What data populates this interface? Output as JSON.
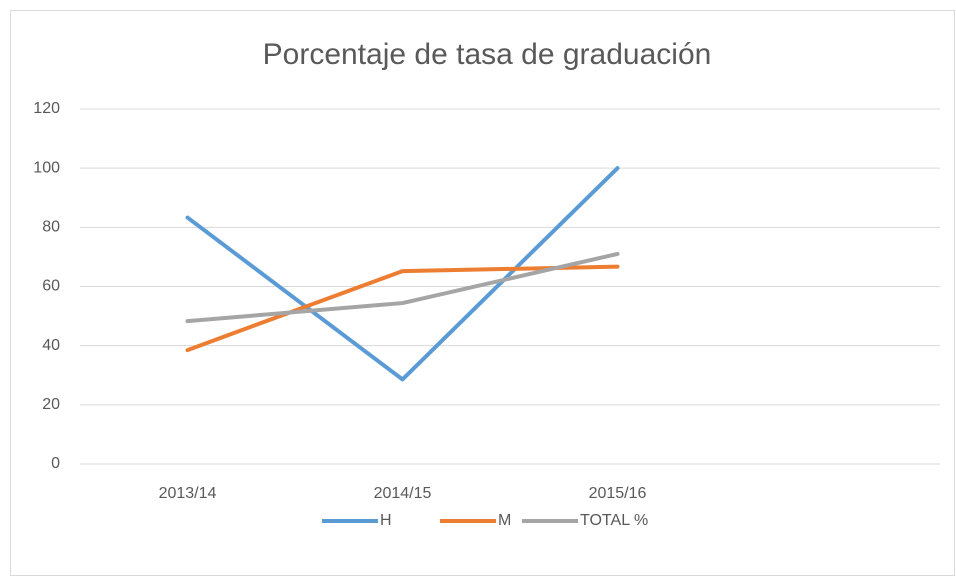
{
  "chart_data": {
    "type": "line",
    "title": "Porcentaje de tasa de graduación",
    "categories": [
      "2013/14",
      "2014/15",
      "2015/16",
      null
    ],
    "series": [
      {
        "name": "H",
        "color": "#5b9bd5",
        "values": [
          83.3,
          28.6,
          100,
          null
        ]
      },
      {
        "name": "M",
        "color": "#ed7d31",
        "values": [
          38.5,
          65.2,
          66.7,
          null
        ]
      },
      {
        "name": "TOTAL %",
        "color": "#a5a5a5",
        "values": [
          48.3,
          54.4,
          71,
          null
        ]
      }
    ],
    "ylim": [
      0,
      120
    ],
    "yticks": [
      0,
      20,
      40,
      60,
      80,
      100,
      120
    ],
    "grid": true,
    "legend": "bottom"
  }
}
